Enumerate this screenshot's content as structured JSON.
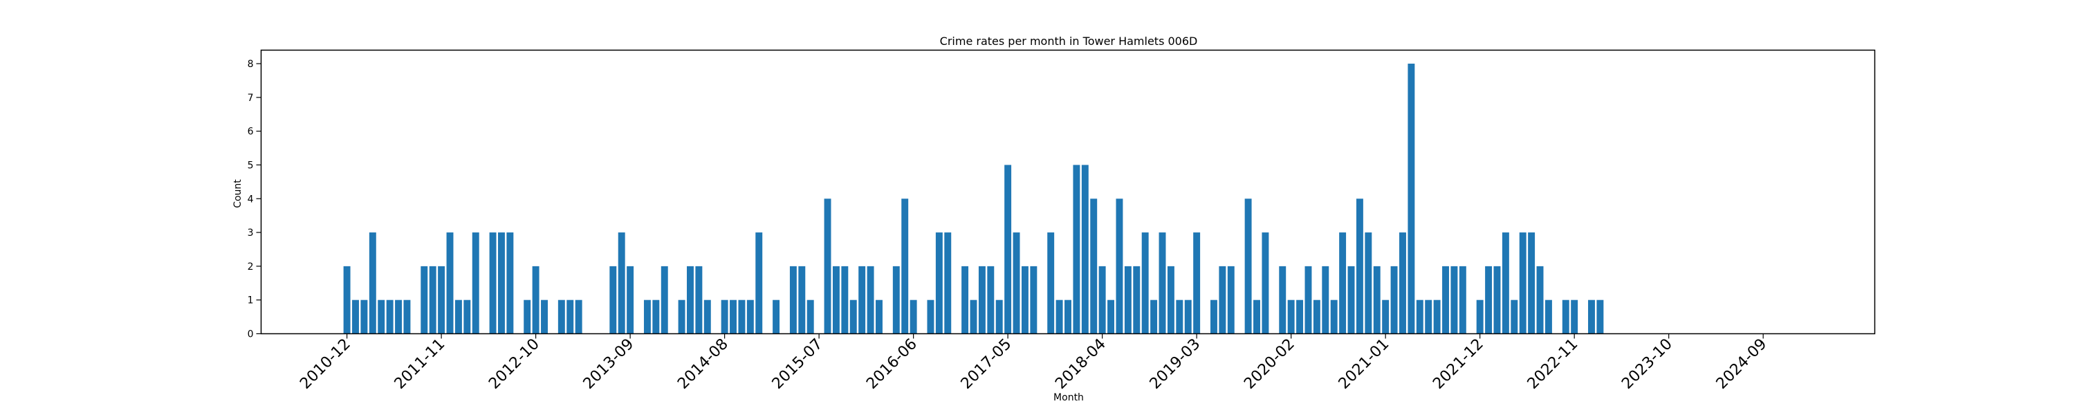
{
  "chart_data": {
    "type": "bar",
    "title": "Crime rates per month in Tower Hamlets 006D",
    "xlabel": "Month",
    "ylabel": "Count",
    "ylim": [
      0,
      8.4
    ],
    "yticks": [
      0,
      1,
      2,
      3,
      4,
      5,
      6,
      7,
      8
    ],
    "xticks": [
      "2010-12",
      "2011-11",
      "2012-10",
      "2013-09",
      "2014-08",
      "2015-07",
      "2016-06",
      "2017-05",
      "2018-04",
      "2019-03",
      "2020-02",
      "2021-01",
      "2021-12",
      "2022-11",
      "2023-10",
      "2024-09"
    ],
    "xlim": [
      "2010-02",
      "2025-10"
    ],
    "grid": false,
    "bar_color": "#1f77b4",
    "x": [
      "2010-12",
      "2011-01",
      "2011-02",
      "2011-03",
      "2011-04",
      "2011-05",
      "2011-06",
      "2011-07",
      "2011-09",
      "2011-10",
      "2011-11",
      "2011-12",
      "2012-01",
      "2012-02",
      "2012-03",
      "2012-05",
      "2012-06",
      "2012-07",
      "2012-09",
      "2012-10",
      "2012-11",
      "2013-01",
      "2013-02",
      "2013-03",
      "2013-07",
      "2013-08",
      "2013-09",
      "2013-11",
      "2013-12",
      "2014-01",
      "2014-03",
      "2014-04",
      "2014-05",
      "2014-06",
      "2014-08",
      "2014-09",
      "2014-10",
      "2014-11",
      "2014-12",
      "2015-02",
      "2015-04",
      "2015-05",
      "2015-06",
      "2015-08",
      "2015-09",
      "2015-10",
      "2015-11",
      "2015-12",
      "2016-01",
      "2016-02",
      "2016-04",
      "2016-05",
      "2016-06",
      "2016-08",
      "2016-09",
      "2016-10",
      "2016-12",
      "2017-01",
      "2017-02",
      "2017-03",
      "2017-04",
      "2017-05",
      "2017-06",
      "2017-07",
      "2017-08",
      "2017-10",
      "2017-11",
      "2017-12",
      "2018-01",
      "2018-02",
      "2018-03",
      "2018-04",
      "2018-05",
      "2018-06",
      "2018-07",
      "2018-08",
      "2018-09",
      "2018-10",
      "2018-11",
      "2018-12",
      "2019-01",
      "2019-02",
      "2019-03",
      "2019-05",
      "2019-06",
      "2019-07",
      "2019-09",
      "2019-10",
      "2019-11",
      "2020-01",
      "2020-02",
      "2020-03",
      "2020-04",
      "2020-05",
      "2020-06",
      "2020-07",
      "2020-08",
      "2020-09",
      "2020-10",
      "2020-11",
      "2020-12",
      "2021-01",
      "2021-02",
      "2021-03",
      "2021-04",
      "2021-05",
      "2021-06",
      "2021-07",
      "2021-08",
      "2021-09",
      "2021-10",
      "2021-12",
      "2022-01",
      "2022-02",
      "2022-03",
      "2022-04",
      "2022-05",
      "2022-06",
      "2022-07",
      "2022-08",
      "2022-10",
      "2022-11",
      "2023-01",
      "2023-02"
    ],
    "values": [
      2,
      1,
      1,
      3,
      1,
      1,
      1,
      1,
      2,
      2,
      2,
      3,
      1,
      1,
      3,
      3,
      3,
      3,
      1,
      2,
      1,
      1,
      1,
      1,
      2,
      3,
      2,
      1,
      1,
      2,
      1,
      2,
      2,
      1,
      1,
      1,
      1,
      1,
      3,
      1,
      2,
      2,
      1,
      4,
      2,
      2,
      1,
      2,
      2,
      1,
      2,
      4,
      1,
      1,
      3,
      3,
      2,
      1,
      2,
      2,
      1,
      5,
      3,
      2,
      2,
      3,
      1,
      1,
      5,
      5,
      4,
      2,
      1,
      4,
      2,
      2,
      3,
      1,
      3,
      2,
      1,
      1,
      3,
      1,
      2,
      2,
      4,
      1,
      3,
      2,
      1,
      1,
      2,
      1,
      2,
      1,
      3,
      2,
      4,
      3,
      2,
      1,
      2,
      3,
      8,
      1,
      1,
      1,
      2,
      2,
      2,
      1,
      2,
      2,
      3,
      1,
      3,
      3,
      2,
      1,
      1,
      1,
      1,
      1
    ]
  }
}
